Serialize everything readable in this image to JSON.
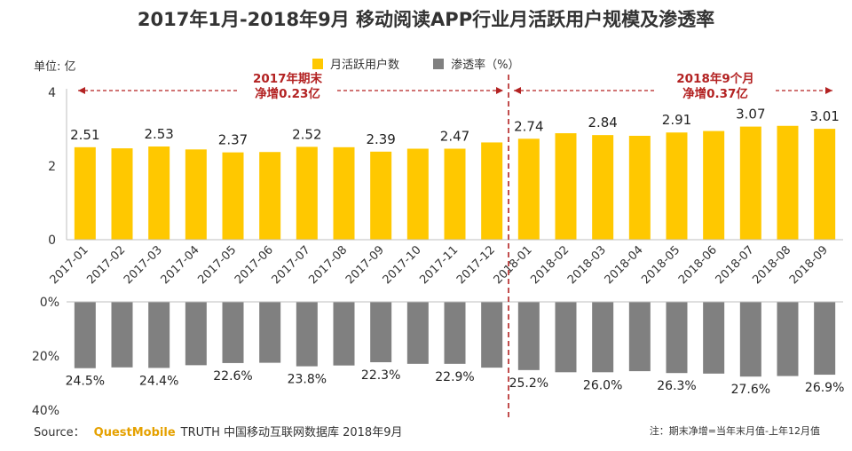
{
  "title": "2017年1月-2018年9月 移动阅读APP行业月活跃用户规模及渗透率",
  "unit_label": "单位: 亿",
  "legend": [
    {
      "label": "月活跃用户数",
      "color": "#FFC800"
    },
    {
      "label": "渗透率（%）",
      "color": "#808080"
    }
  ],
  "annotations": [
    {
      "line1": "2017年期末",
      "line2": "净增0.23亿"
    },
    {
      "line1": "2018年9个月",
      "line2": "净增0.37亿"
    }
  ],
  "footer": {
    "source_label": "Source：",
    "brand": "QuestMobile",
    "source_rest": "TRUTH 中国移动互联网数据库 2018年9月",
    "note": "注：期末净增=当年末月值-上年12月值"
  },
  "chart_data": [
    {
      "type": "bar",
      "series_name": "月活跃用户数",
      "color": "#FFC800",
      "categories": [
        "2017-01",
        "2017-02",
        "2017-03",
        "2017-04",
        "2017-05",
        "2017-06",
        "2017-07",
        "2017-08",
        "2017-09",
        "2017-10",
        "2017-11",
        "2017-12",
        "2018-01",
        "2018-02",
        "2018-03",
        "2018-04",
        "2018-05",
        "2018-06",
        "2018-07",
        "2018-08",
        "2018-09"
      ],
      "values": [
        2.51,
        2.48,
        2.53,
        2.45,
        2.37,
        2.38,
        2.52,
        2.51,
        2.39,
        2.47,
        2.47,
        2.64,
        2.74,
        2.89,
        2.84,
        2.82,
        2.91,
        2.95,
        3.07,
        3.09,
        3.01
      ],
      "labels": [
        "2.51",
        "",
        "2.53",
        "",
        "2.37",
        "",
        "2.52",
        "",
        "2.39",
        "",
        "2.47",
        "",
        "2.74",
        "",
        "2.84",
        "",
        "2.91",
        "",
        "3.07",
        "",
        "3.01"
      ],
      "yticks": [
        "0",
        "2",
        "4"
      ],
      "ylim": [
        0,
        4
      ]
    },
    {
      "type": "bar",
      "series_name": "渗透率（%）",
      "color": "#808080",
      "orientation": "downward",
      "categories": [
        "2017-01",
        "2017-02",
        "2017-03",
        "2017-04",
        "2017-05",
        "2017-06",
        "2017-07",
        "2017-08",
        "2017-09",
        "2017-10",
        "2017-11",
        "2017-12",
        "2018-01",
        "2018-02",
        "2018-03",
        "2018-04",
        "2018-05",
        "2018-06",
        "2018-07",
        "2018-08",
        "2018-09"
      ],
      "values": [
        24.5,
        24.2,
        24.4,
        23.4,
        22.6,
        22.5,
        23.8,
        23.5,
        22.3,
        22.9,
        22.9,
        24.3,
        25.2,
        26.0,
        26.0,
        25.6,
        26.3,
        26.5,
        27.6,
        27.4,
        26.9
      ],
      "labels": [
        "24.5%",
        "",
        "24.4%",
        "",
        "22.6%",
        "",
        "23.8%",
        "",
        "22.3%",
        "",
        "22.9%",
        "",
        "25.2%",
        "",
        "26.0%",
        "",
        "26.3%",
        "",
        "27.6%",
        "",
        "26.9%"
      ],
      "yticks": [
        "0%",
        "20%",
        "40%"
      ],
      "ylim": [
        0,
        40
      ]
    }
  ]
}
